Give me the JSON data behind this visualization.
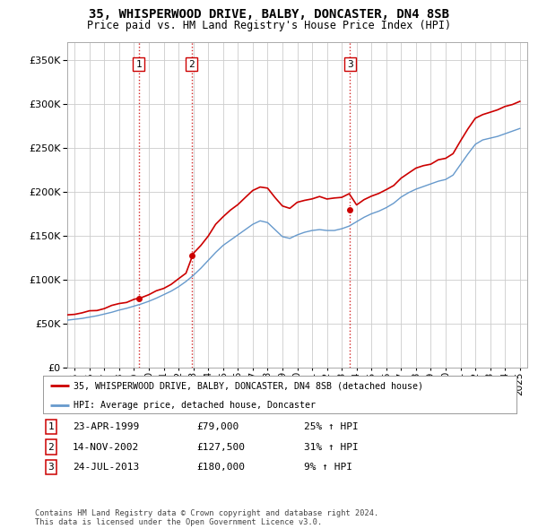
{
  "title": "35, WHISPERWOOD DRIVE, BALBY, DONCASTER, DN4 8SB",
  "subtitle": "Price paid vs. HM Land Registry's House Price Index (HPI)",
  "legend_line1": "35, WHISPERWOOD DRIVE, BALBY, DONCASTER, DN4 8SB (detached house)",
  "legend_line2": "HPI: Average price, detached house, Doncaster",
  "copyright": "Contains HM Land Registry data © Crown copyright and database right 2024.\nThis data is licensed under the Open Government Licence v3.0.",
  "transactions": [
    {
      "num": 1,
      "date": "23-APR-1999",
      "price": "£79,000",
      "hpi": "25% ↑ HPI"
    },
    {
      "num": 2,
      "date": "14-NOV-2002",
      "price": "£127,500",
      "hpi": "31% ↑ HPI"
    },
    {
      "num": 3,
      "date": "24-JUL-2013",
      "price": "£180,000",
      "hpi": "9% ↑ HPI"
    }
  ],
  "sale_dates": [
    1999.31,
    2002.87,
    2013.56
  ],
  "sale_prices": [
    79000,
    127500,
    180000
  ],
  "red_color": "#cc0000",
  "blue_color": "#6699cc",
  "vline_color": "#cc0000",
  "background_color": "#ffffff",
  "grid_color": "#cccccc",
  "ylim": [
    0,
    370000
  ],
  "yticks": [
    0,
    50000,
    100000,
    150000,
    200000,
    250000,
    300000,
    350000
  ],
  "xmin": 1994.5,
  "xmax": 2025.5,
  "years_hpi": [
    1994.5,
    1995.0,
    1995.5,
    1996.0,
    1996.5,
    1997.0,
    1997.5,
    1998.0,
    1998.5,
    1999.0,
    1999.5,
    2000.0,
    2000.5,
    2001.0,
    2001.5,
    2002.0,
    2002.5,
    2003.0,
    2003.5,
    2004.0,
    2004.5,
    2005.0,
    2005.5,
    2006.0,
    2006.5,
    2007.0,
    2007.5,
    2008.0,
    2008.5,
    2009.0,
    2009.5,
    2010.0,
    2010.5,
    2011.0,
    2011.5,
    2012.0,
    2012.5,
    2013.0,
    2013.5,
    2014.0,
    2014.5,
    2015.0,
    2015.5,
    2016.0,
    2016.5,
    2017.0,
    2017.5,
    2018.0,
    2018.5,
    2019.0,
    2019.5,
    2020.0,
    2020.5,
    2021.0,
    2021.5,
    2022.0,
    2022.5,
    2023.0,
    2023.5,
    2024.0,
    2024.5,
    2025.0
  ],
  "hpi_values": [
    54000,
    55000,
    56000,
    57500,
    59000,
    61000,
    63000,
    65500,
    67500,
    70000,
    72500,
    75500,
    79000,
    83000,
    87000,
    92000,
    98000,
    105000,
    113000,
    122000,
    131000,
    139000,
    145000,
    151000,
    157000,
    163000,
    167000,
    165000,
    157000,
    149000,
    147000,
    151000,
    154000,
    156000,
    157000,
    156000,
    156000,
    158000,
    161000,
    166000,
    171000,
    175000,
    178000,
    182000,
    187000,
    194000,
    199000,
    203000,
    206000,
    209000,
    212000,
    214000,
    219000,
    231000,
    243000,
    254000,
    259000,
    261000,
    263000,
    266000,
    269000,
    272000
  ]
}
